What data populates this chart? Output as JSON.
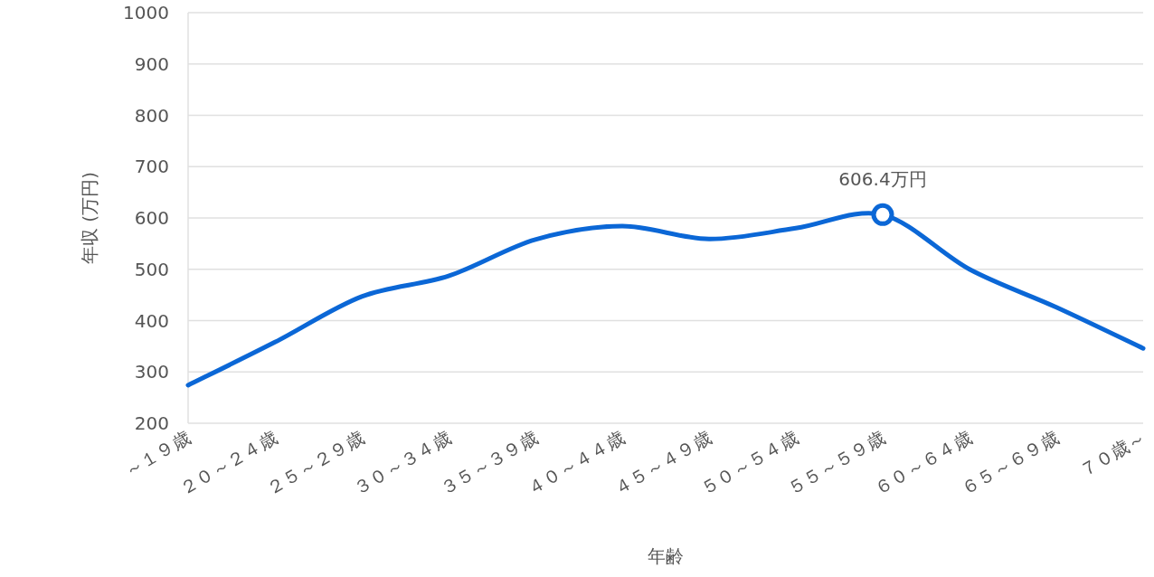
{
  "chart_data": {
    "type": "line",
    "xlabel": "年齢",
    "ylabel": "年収 (万円)",
    "categories": [
      "～１９歳",
      "２０～２４歳",
      "２５～２９歳",
      "３０～３４歳",
      "３５～３９歳",
      "４０～４４歳",
      "４５～４９歳",
      "５０～５４歳",
      "５５～５９歳",
      "６０～６４歳",
      "６５～６９歳",
      "７０歳～"
    ],
    "series": [
      {
        "color": "#0b67d6",
        "values": [
          274,
          358,
          447,
          487,
          558,
          584,
          559,
          580,
          606.4,
          500,
          426,
          346
        ]
      }
    ],
    "ylim": [
      200,
      1000
    ],
    "yticks": [
      200,
      300,
      400,
      500,
      600,
      700,
      800,
      900,
      1000
    ],
    "grid": "y",
    "marker": "none",
    "annotations": [
      {
        "text": "606.4万円",
        "x": "５５～５９歳",
        "y": 606.4
      }
    ]
  }
}
